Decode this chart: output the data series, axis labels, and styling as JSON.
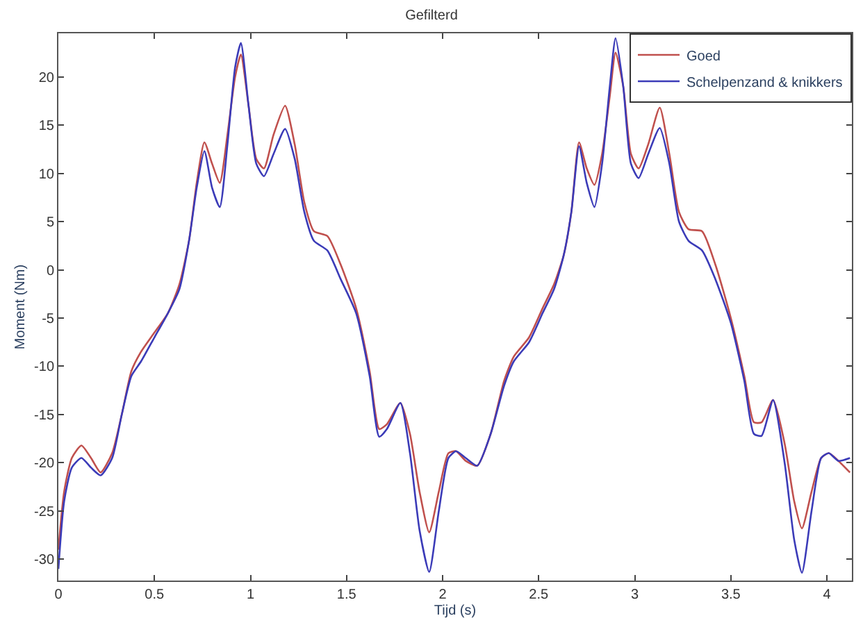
{
  "chart_data": {
    "type": "line",
    "title": "Gefilterd",
    "xlabel": "Tijd (s)",
    "ylabel": "Moment (Nm)",
    "x": [
      0,
      0.03,
      0.07,
      0.12,
      0.17,
      0.22,
      0.28,
      0.33,
      0.38,
      0.43,
      0.5,
      0.57,
      0.63,
      0.68,
      0.72,
      0.76,
      0.8,
      0.84,
      0.88,
      0.92,
      0.95,
      0.99,
      1.03,
      1.07,
      1.12,
      1.18,
      1.23,
      1.28,
      1.33,
      1.4,
      1.47,
      1.55,
      1.62,
      1.67,
      1.71,
      1.78,
      1.83,
      1.88,
      1.93,
      1.98,
      2.03,
      2.07,
      2.12,
      2.18,
      2.25,
      2.32,
      2.37,
      2.45,
      2.52,
      2.58,
      2.63,
      2.67,
      2.71,
      2.75,
      2.79,
      2.83,
      2.87,
      2.9,
      2.94,
      2.98,
      3.02,
      3.07,
      3.13,
      3.18,
      3.23,
      3.28,
      3.35,
      3.42,
      3.5,
      3.57,
      3.62,
      3.66,
      3.72,
      3.78,
      3.83,
      3.87,
      3.92,
      3.97,
      4.01,
      4.06,
      4.12
    ],
    "series": [
      {
        "name": "Goed",
        "color": "#c0504d",
        "values": [
          -29,
          -23,
          -19.5,
          -18.2,
          -19.5,
          -21,
          -19,
          -15,
          -10.5,
          -8.5,
          -6.5,
          -4.5,
          -1.5,
          3,
          9,
          13.2,
          11,
          9,
          14,
          20,
          22.3,
          17,
          11.5,
          10.5,
          14,
          17,
          13,
          7,
          4,
          3.5,
          0.5,
          -4,
          -10.5,
          -16.5,
          -16,
          -13.8,
          -17,
          -23,
          -27.2,
          -23,
          -19,
          -18.8,
          -19.8,
          -20.3,
          -17,
          -11.5,
          -9,
          -7,
          -4,
          -1.5,
          1.5,
          6,
          13.2,
          10.5,
          8.8,
          12,
          18,
          22.5,
          19,
          12,
          10.5,
          13,
          16.8,
          12,
          6,
          4.2,
          4,
          0.5,
          -5,
          -11,
          -15.8,
          -15.8,
          -13.5,
          -18,
          -24,
          -26.8,
          -23,
          -19.5,
          -19,
          -19.8,
          -21
        ]
      },
      {
        "name": "Schelpenzand & knikkers",
        "color": "#3b3bb8",
        "values": [
          -31,
          -24,
          -20.5,
          -19.5,
          -20.5,
          -21.3,
          -19.5,
          -15,
          -11,
          -9.5,
          -7,
          -4.5,
          -2,
          3,
          8.5,
          12.3,
          8.5,
          6.5,
          13,
          21,
          23.5,
          17,
          11,
          9.7,
          12,
          14.6,
          11.5,
          6,
          3,
          2,
          -1,
          -4.5,
          -11,
          -17.3,
          -16.5,
          -13.8,
          -19,
          -27,
          -31.3,
          -25,
          -19.5,
          -18.8,
          -19.5,
          -20.3,
          -17,
          -12,
          -9.5,
          -7.5,
          -4.5,
          -2,
          1.5,
          6,
          12.8,
          9,
          6.5,
          11,
          19,
          24,
          19,
          11,
          9.5,
          12,
          14.7,
          11,
          5,
          3,
          2,
          -1,
          -5.5,
          -11.5,
          -17,
          -17.2,
          -13.5,
          -20,
          -28,
          -31.4,
          -25,
          -19.5,
          -19,
          -19.8,
          -19.5
        ]
      }
    ],
    "xlim": [
      0,
      4.13
    ],
    "ylim": [
      -32.2,
      24.5
    ],
    "xticks": [
      0,
      0.5,
      1,
      1.5,
      2,
      2.5,
      3,
      3.5,
      4
    ],
    "yticks": [
      -30,
      -25,
      -20,
      -15,
      -10,
      -5,
      0,
      5,
      10,
      15,
      20
    ],
    "legend": "top right",
    "line_style": "solid",
    "marker": "none"
  }
}
